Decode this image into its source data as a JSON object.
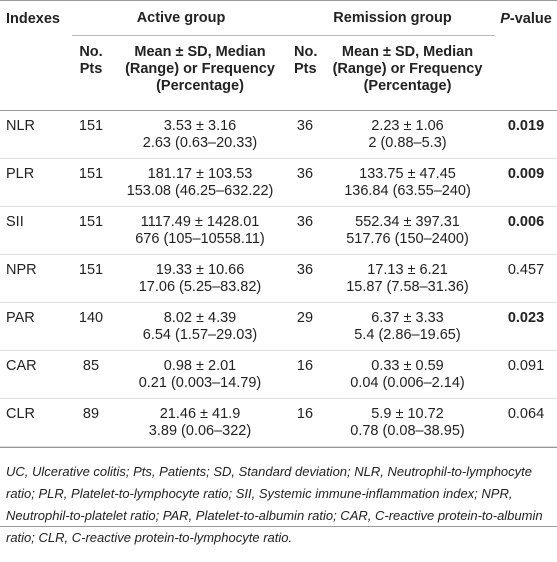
{
  "header": {
    "indexes": "Indexes",
    "active_group": "Active group",
    "remission_group": "Remission group",
    "p_value_italic": "P",
    "p_value_rest": "-value",
    "active_n": "No. Pts",
    "active_stats": "Mean ± SD, Median (Range) or Frequency (Percentage)",
    "remission_n": "No. Pts",
    "remission_stats": "Mean ± SD, Median (Range) or Frequency (Percentage)"
  },
  "table": {
    "rows": [
      {
        "index": "NLR",
        "active_n": "151",
        "active_stats": [
          "3.53 ± 3.16",
          "2.63 (0.63–20.33)"
        ],
        "remission_n": "36",
        "remission_stats": [
          "2.23 ± 1.06",
          "2 (0.88–5.3)"
        ],
        "p_value": "0.019",
        "p_bold": true
      },
      {
        "index": "PLR",
        "active_n": "151",
        "active_stats": [
          "181.17 ± 103.53",
          "153.08 (46.25–632.22)"
        ],
        "remission_n": "36",
        "remission_stats": [
          "133.75 ± 47.45",
          "136.84 (63.55–240)"
        ],
        "p_value": "0.009",
        "p_bold": true
      },
      {
        "index": "SII",
        "active_n": "151",
        "active_stats": [
          "1117.49 ± 1428.01",
          "676 (105–10558.11)"
        ],
        "remission_n": "36",
        "remission_stats": [
          "552.34 ± 397.31",
          "517.76 (150–2400)"
        ],
        "p_value": "0.006",
        "p_bold": true
      },
      {
        "index": "NPR",
        "active_n": "151",
        "active_stats": [
          "19.33 ± 10.66",
          "17.06 (5.25–83.82)"
        ],
        "remission_n": "36",
        "remission_stats": [
          "17.13 ± 6.21",
          "15.87 (7.58–31.36)"
        ],
        "p_value": "0.457",
        "p_bold": false
      },
      {
        "index": "PAR",
        "active_n": "140",
        "active_stats": [
          "8.02 ± 4.39",
          "6.54 (1.57–29.03)"
        ],
        "remission_n": "29",
        "remission_stats": [
          "6.37 ± 3.33",
          "5.4 (2.86–19.65)"
        ],
        "p_value": "0.023",
        "p_bold": true
      },
      {
        "index": "CAR",
        "active_n": "85",
        "active_stats": [
          "0.98 ± 2.01",
          "0.21 (0.003–14.79)"
        ],
        "remission_n": "16",
        "remission_stats": [
          "0.33 ± 0.59",
          "0.04 (0.006–2.14)"
        ],
        "p_value": "0.091",
        "p_bold": false
      },
      {
        "index": "CLR",
        "active_n": "89",
        "active_stats": [
          "21.46 ± 41.9",
          "3.89 (0.06–322)"
        ],
        "remission_n": "16",
        "remission_stats": [
          "5.9 ± 10.72",
          "0.78 (0.08–38.95)"
        ],
        "p_value": "0.064",
        "p_bold": false
      }
    ]
  },
  "footnote": "UC, Ulcerative colitis; Pts, Patients; SD, Standard deviation; NLR, Neutrophil-to-lymphocyte ratio; PLR, Platelet-to-lymphocyte ratio; SII, Systemic immune-inflammation index; NPR, Neutrophil-to-platelet ratio; PAR, Platelet-to-albumin ratio; CAR, C-reactive protein-to-albumin ratio; CLR, C-reactive protein-to-lymphocyte ratio."
}
